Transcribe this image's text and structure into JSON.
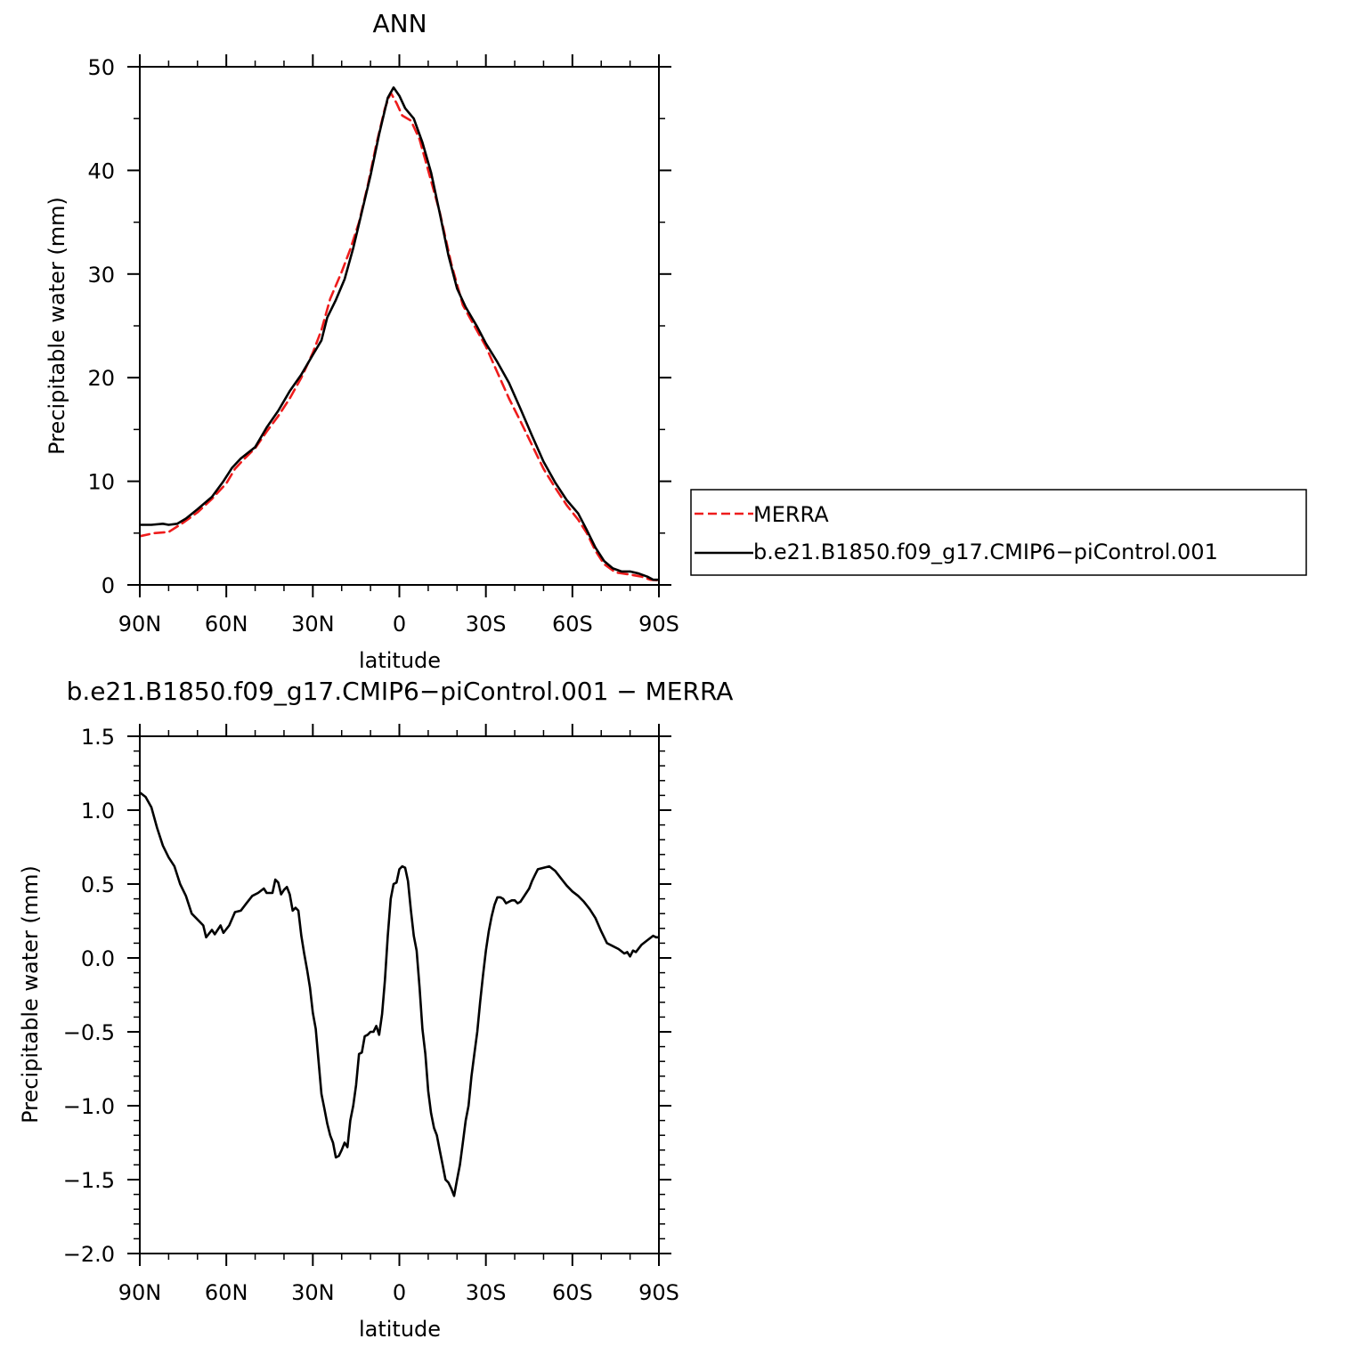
{
  "chart_data": [
    {
      "type": "line",
      "title": "ANN",
      "xlabel": "latitude",
      "ylabel": "Precipitable water (mm)",
      "xlim": [
        90,
        -90
      ],
      "ylim": [
        0,
        50
      ],
      "x_tick_values": [
        90,
        60,
        30,
        0,
        -30,
        -60,
        -90
      ],
      "x_tick_labels": [
        "90N",
        "60N",
        "30N",
        "0",
        "30S",
        "60S",
        "90S"
      ],
      "y_tick_values": [
        0,
        10,
        20,
        30,
        40,
        50
      ],
      "y_tick_labels": [
        "0",
        "10",
        "20",
        "30",
        "40",
        "50"
      ],
      "grid": false,
      "legend_position": "right",
      "series": [
        {
          "name": "MERRA",
          "color": "#ee1c1c",
          "dash": "dashed",
          "points": [
            [
              90,
              4.7
            ],
            [
              85,
              5.0
            ],
            [
              80,
              5.1
            ],
            [
              75,
              6.0
            ],
            [
              70,
              7.0
            ],
            [
              65,
              8.3
            ],
            [
              60,
              9.8
            ],
            [
              57,
              11.2
            ],
            [
              54,
              12.1
            ],
            [
              50,
              13.2
            ],
            [
              46,
              14.8
            ],
            [
              42,
              16.3
            ],
            [
              38,
              18.0
            ],
            [
              34,
              20.0
            ],
            [
              30,
              22.4
            ],
            [
              27,
              24.6
            ],
            [
              24,
              27.6
            ],
            [
              20,
              30.2
            ],
            [
              17,
              32.4
            ],
            [
              14,
              35.0
            ],
            [
              11,
              38.5
            ],
            [
              8,
              42.5
            ],
            [
              5,
              46.0
            ],
            [
              3,
              47.5
            ],
            [
              1,
              46.5
            ],
            [
              -1,
              45.3
            ],
            [
              -4,
              44.8
            ],
            [
              -7,
              43.0
            ],
            [
              -10,
              40.0
            ],
            [
              -14,
              36.0
            ],
            [
              -18,
              31.0
            ],
            [
              -22,
              27.0
            ],
            [
              -26,
              25.0
            ],
            [
              -30,
              23.0
            ],
            [
              -34,
              20.5
            ],
            [
              -38,
              18.0
            ],
            [
              -42,
              15.8
            ],
            [
              -46,
              13.5
            ],
            [
              -50,
              11.2
            ],
            [
              -54,
              9.4
            ],
            [
              -58,
              7.7
            ],
            [
              -62,
              6.3
            ],
            [
              -65,
              5.0
            ],
            [
              -68,
              3.3
            ],
            [
              -71,
              2.0
            ],
            [
              -75,
              1.2
            ],
            [
              -80,
              1.0
            ],
            [
              -84,
              0.8
            ],
            [
              -87,
              0.5
            ],
            [
              -90,
              0.45
            ]
          ]
        },
        {
          "name": "b.e21.B1850.f09_g17.CMIP6−piControl.001",
          "color": "#000000",
          "dash": "solid",
          "points": [
            [
              90,
              5.8
            ],
            [
              86,
              5.8
            ],
            [
              82,
              5.9
            ],
            [
              80,
              5.8
            ],
            [
              77,
              5.9
            ],
            [
              74,
              6.4
            ],
            [
              70,
              7.3
            ],
            [
              65,
              8.5
            ],
            [
              61,
              10.0
            ],
            [
              58,
              11.3
            ],
            [
              55,
              12.2
            ],
            [
              50,
              13.3
            ],
            [
              46,
              15.2
            ],
            [
              42,
              16.8
            ],
            [
              38,
              18.7
            ],
            [
              34,
              20.3
            ],
            [
              30,
              22.2
            ],
            [
              27,
              23.6
            ],
            [
              25,
              25.8
            ],
            [
              22,
              27.5
            ],
            [
              19,
              29.5
            ],
            [
              16,
              32.5
            ],
            [
              13,
              36.0
            ],
            [
              10,
              39.5
            ],
            [
              7,
              43.5
            ],
            [
              4,
              47.0
            ],
            [
              2,
              48.0
            ],
            [
              0,
              47.2
            ],
            [
              -2,
              46.0
            ],
            [
              -5,
              45.0
            ],
            [
              -8,
              42.7
            ],
            [
              -11,
              39.8
            ],
            [
              -14,
              35.9
            ],
            [
              -17,
              31.8
            ],
            [
              -20,
              28.6
            ],
            [
              -23,
              26.8
            ],
            [
              -27,
              24.9
            ],
            [
              -30,
              23.3
            ],
            [
              -34,
              21.5
            ],
            [
              -38,
              19.5
            ],
            [
              -42,
              17.0
            ],
            [
              -46,
              14.4
            ],
            [
              -50,
              11.9
            ],
            [
              -54,
              9.9
            ],
            [
              -58,
              8.2
            ],
            [
              -62,
              6.9
            ],
            [
              -65,
              5.3
            ],
            [
              -68,
              3.6
            ],
            [
              -71,
              2.3
            ],
            [
              -74,
              1.6
            ],
            [
              -77,
              1.3
            ],
            [
              -80,
              1.3
            ],
            [
              -83,
              1.1
            ],
            [
              -86,
              0.8
            ],
            [
              -88,
              0.5
            ],
            [
              -90,
              0.5
            ]
          ]
        }
      ]
    },
    {
      "type": "line",
      "title": "b.e21.B1850.f09_g17.CMIP6−piControl.001  −  MERRA",
      "xlabel": "latitude",
      "ylabel": "Precipitable water (mm)",
      "xlim": [
        90,
        -90
      ],
      "ylim": [
        -2.0,
        1.5
      ],
      "x_tick_values": [
        90,
        60,
        30,
        0,
        -30,
        -60,
        -90
      ],
      "x_tick_labels": [
        "90N",
        "60N",
        "30N",
        "0",
        "30S",
        "60S",
        "90S"
      ],
      "y_tick_values": [
        1.5,
        1.0,
        0.5,
        0.0,
        -0.5,
        -1.0,
        -1.5,
        -2.0
      ],
      "y_tick_labels": [
        "1.5",
        "1.0",
        "0.5",
        "0.0",
        "−0.5",
        "−1.0",
        "−1.5",
        "−2.0"
      ],
      "grid": false,
      "series": [
        {
          "name": "",
          "color": "#000000",
          "dash": "solid",
          "points": [
            [
              90,
              1.12
            ],
            [
              88,
              1.09
            ],
            [
              86,
              1.02
            ],
            [
              84,
              0.88
            ],
            [
              82,
              0.76
            ],
            [
              80,
              0.68
            ],
            [
              78,
              0.62
            ],
            [
              76,
              0.5
            ],
            [
              74,
              0.42
            ],
            [
              72,
              0.3
            ],
            [
              70,
              0.26
            ],
            [
              68,
              0.22
            ],
            [
              67,
              0.14
            ],
            [
              65,
              0.19
            ],
            [
              64,
              0.16
            ],
            [
              62,
              0.22
            ],
            [
              61,
              0.17
            ],
            [
              59,
              0.22
            ],
            [
              57,
              0.31
            ],
            [
              55,
              0.32
            ],
            [
              53,
              0.37
            ],
            [
              51,
              0.42
            ],
            [
              49,
              0.44
            ],
            [
              47,
              0.47
            ],
            [
              46,
              0.44
            ],
            [
              44,
              0.44
            ],
            [
              43,
              0.53
            ],
            [
              42,
              0.51
            ],
            [
              41,
              0.43
            ],
            [
              40,
              0.46
            ],
            [
              39,
              0.48
            ],
            [
              38,
              0.43
            ],
            [
              37,
              0.32
            ],
            [
              36,
              0.34
            ],
            [
              35,
              0.32
            ],
            [
              34,
              0.15
            ],
            [
              33,
              0.03
            ],
            [
              32,
              -0.08
            ],
            [
              31,
              -0.2
            ],
            [
              30,
              -0.37
            ],
            [
              29,
              -0.48
            ],
            [
              28,
              -0.7
            ],
            [
              27,
              -0.92
            ],
            [
              26,
              -1.02
            ],
            [
              25,
              -1.12
            ],
            [
              24,
              -1.2
            ],
            [
              23,
              -1.25
            ],
            [
              22,
              -1.35
            ],
            [
              21,
              -1.34
            ],
            [
              20,
              -1.3
            ],
            [
              19,
              -1.25
            ],
            [
              18,
              -1.28
            ],
            [
              17,
              -1.1
            ],
            [
              16,
              -1.0
            ],
            [
              15,
              -0.86
            ],
            [
              14,
              -0.65
            ],
            [
              13,
              -0.64
            ],
            [
              12,
              -0.53
            ],
            [
              11,
              -0.52
            ],
            [
              10,
              -0.5
            ],
            [
              9,
              -0.5
            ],
            [
              8,
              -0.46
            ],
            [
              7,
              -0.52
            ],
            [
              6,
              -0.38
            ],
            [
              5,
              -0.15
            ],
            [
              4,
              0.15
            ],
            [
              3,
              0.4
            ],
            [
              2,
              0.5
            ],
            [
              1,
              0.51
            ],
            [
              0,
              0.6
            ],
            [
              -1,
              0.62
            ],
            [
              -2,
              0.61
            ],
            [
              -3,
              0.52
            ],
            [
              -4,
              0.32
            ],
            [
              -5,
              0.15
            ],
            [
              -6,
              0.05
            ],
            [
              -7,
              -0.2
            ],
            [
              -8,
              -0.48
            ],
            [
              -9,
              -0.65
            ],
            [
              -10,
              -0.9
            ],
            [
              -11,
              -1.05
            ],
            [
              -12,
              -1.15
            ],
            [
              -13,
              -1.2
            ],
            [
              -14,
              -1.3
            ],
            [
              -15,
              -1.4
            ],
            [
              -16,
              -1.5
            ],
            [
              -17,
              -1.52
            ],
            [
              -18,
              -1.56
            ],
            [
              -19,
              -1.61
            ],
            [
              -20,
              -1.5
            ],
            [
              -21,
              -1.4
            ],
            [
              -22,
              -1.25
            ],
            [
              -23,
              -1.1
            ],
            [
              -24,
              -1.0
            ],
            [
              -25,
              -0.8
            ],
            [
              -26,
              -0.65
            ],
            [
              -27,
              -0.5
            ],
            [
              -28,
              -0.3
            ],
            [
              -29,
              -0.12
            ],
            [
              -30,
              0.05
            ],
            [
              -31,
              0.18
            ],
            [
              -32,
              0.28
            ],
            [
              -33,
              0.36
            ],
            [
              -34,
              0.41
            ],
            [
              -35,
              0.41
            ],
            [
              -36,
              0.4
            ],
            [
              -37,
              0.37
            ],
            [
              -38,
              0.38
            ],
            [
              -39,
              0.39
            ],
            [
              -40,
              0.39
            ],
            [
              -41,
              0.37
            ],
            [
              -42,
              0.38
            ],
            [
              -43,
              0.41
            ],
            [
              -44,
              0.44
            ],
            [
              -45,
              0.47
            ],
            [
              -46,
              0.52
            ],
            [
              -47,
              0.56
            ],
            [
              -48,
              0.6
            ],
            [
              -50,
              0.61
            ],
            [
              -52,
              0.62
            ],
            [
              -54,
              0.59
            ],
            [
              -56,
              0.54
            ],
            [
              -58,
              0.49
            ],
            [
              -60,
              0.45
            ],
            [
              -62,
              0.42
            ],
            [
              -64,
              0.38
            ],
            [
              -66,
              0.33
            ],
            [
              -68,
              0.27
            ],
            [
              -70,
              0.18
            ],
            [
              -72,
              0.1
            ],
            [
              -74,
              0.08
            ],
            [
              -76,
              0.06
            ],
            [
              -78,
              0.03
            ],
            [
              -79,
              0.04
            ],
            [
              -80,
              0.01
            ],
            [
              -81,
              0.05
            ],
            [
              -82,
              0.04
            ],
            [
              -84,
              0.09
            ],
            [
              -86,
              0.12
            ],
            [
              -88,
              0.15
            ],
            [
              -89,
              0.14
            ],
            [
              -90,
              0.14
            ],
            [
              -91,
              0.09
            ]
          ]
        }
      ]
    }
  ]
}
